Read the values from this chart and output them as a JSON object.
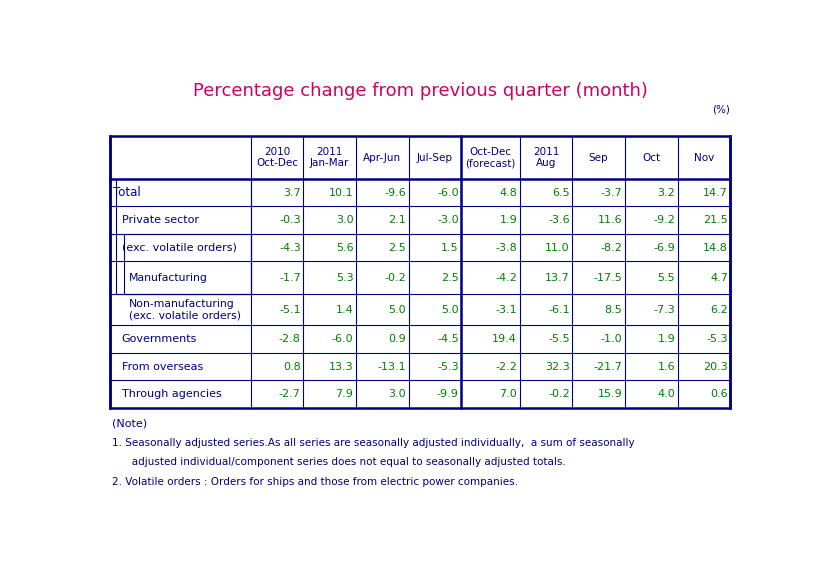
{
  "title": "Percentage change from previous quarter (month)",
  "title_color": "#CC0066",
  "percent_label": "(%)",
  "header_texts": [
    "2010\nOct-Dec",
    "2011\nJan-Mar",
    "Apr-Jun",
    "Jul-Sep",
    "Oct-Dec\n(forecast)",
    "2011\nAug",
    "Sep",
    "Oct",
    "Nov"
  ],
  "row_labels": [
    "Total",
    "Private sector",
    "(exc. volatile orders)",
    "Manufacturing",
    "Non-manufacturing\n(exc. volatile orders)",
    "Governments",
    "From overseas",
    "Through agencies"
  ],
  "data": [
    [
      3.7,
      10.1,
      -9.6,
      -6.0,
      4.8,
      6.5,
      -3.7,
      3.2,
      14.7
    ],
    [
      -0.3,
      3.0,
      2.1,
      -3.0,
      1.9,
      -3.6,
      11.6,
      -9.2,
      21.5
    ],
    [
      -4.3,
      5.6,
      2.5,
      1.5,
      -3.8,
      11.0,
      -8.2,
      -6.9,
      14.8
    ],
    [
      -1.7,
      5.3,
      -0.2,
      2.5,
      -4.2,
      13.7,
      -17.5,
      5.5,
      4.7
    ],
    [
      -5.1,
      1.4,
      5.0,
      5.0,
      -3.1,
      -6.1,
      8.5,
      -7.3,
      6.2
    ],
    [
      -2.8,
      -6.0,
      0.9,
      -4.5,
      19.4,
      -5.5,
      -1.0,
      1.9,
      -5.3
    ],
    [
      0.8,
      13.3,
      -13.1,
      -5.3,
      -2.2,
      32.3,
      -21.7,
      1.6,
      20.3
    ],
    [
      -2.7,
      7.9,
      3.0,
      -9.9,
      7.0,
      -0.2,
      15.9,
      4.0,
      0.6
    ]
  ],
  "data_color": "#008000",
  "header_color": "#000080",
  "label_color": "#000080",
  "border_color": "#000080",
  "note_lines": [
    "(Note)",
    "1. Seasonally adjusted series.As all series are seasonally adjusted individually,  a sum of seasonally",
    "   adjusted individual/component series does not equal to seasonally adjusted totals.",
    "2. Volatile orders : Orders for ships and those from electric power companies."
  ],
  "note_color": "#000080",
  "bg_color": "#ffffff"
}
